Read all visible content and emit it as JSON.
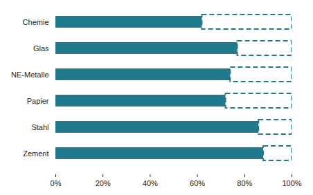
{
  "chart_data": {
    "type": "bar",
    "orientation": "horizontal",
    "categories": [
      "Chemie",
      "Glas",
      "NE-Metalle",
      "Papier",
      "Stahl",
      "Zement"
    ],
    "values": [
      62,
      77,
      74,
      72,
      86,
      88
    ],
    "color": "#217a8c",
    "xlim": [
      0,
      100
    ],
    "xticks": [
      {
        "value": 0,
        "label": "0%"
      },
      {
        "value": 20,
        "label": "20%"
      },
      {
        "value": 40,
        "label": "40%"
      },
      {
        "value": 60,
        "label": "60%"
      },
      {
        "value": 80,
        "label": "80%"
      },
      {
        "value": 100,
        "label": "100%"
      }
    ],
    "grid": false
  }
}
